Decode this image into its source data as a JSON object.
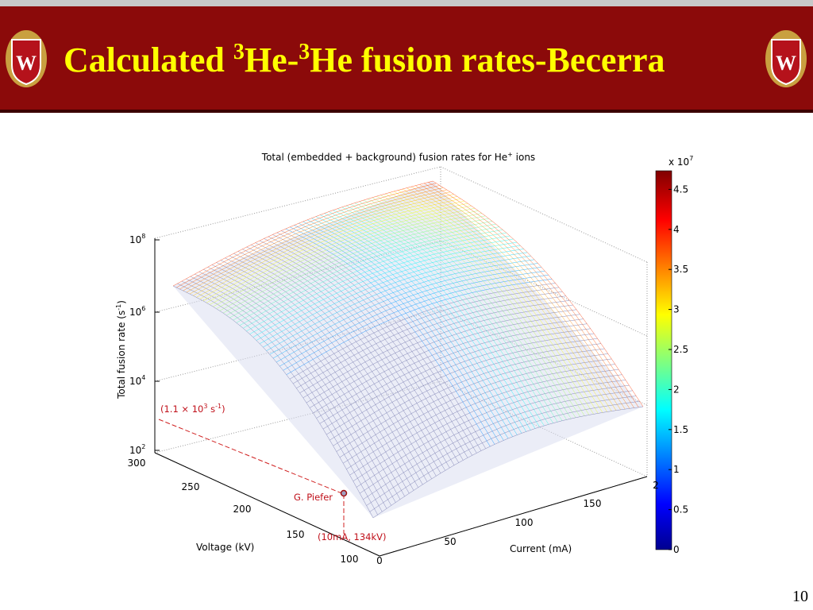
{
  "header": {
    "title": [
      "Calculated ",
      "3",
      "He-",
      "3",
      "He fusion rates-Becerra"
    ]
  },
  "figure": {
    "title": [
      "Total (embedded + background) fusion rates for He",
      "+",
      " ions"
    ],
    "z_label": [
      "Total fusion rate (s",
      "-1",
      ")"
    ],
    "z_ticks": [
      {
        "base": "10",
        "exponent": "2"
      },
      {
        "base": "10",
        "exponent": "4"
      },
      {
        "base": "10",
        "exponent": "6"
      },
      {
        "base": "10",
        "exponent": "8"
      }
    ],
    "voltage_label": "Voltage (kV)",
    "voltage_ticks": [
      "100",
      "150",
      "200",
      "250",
      "300"
    ],
    "current_label": "Current (mA)",
    "current_ticks": [
      "0",
      "50",
      "100",
      "150",
      "2"
    ],
    "colorbar_multiplier": [
      "x 10",
      "7"
    ],
    "colorbar_ticks": [
      "0",
      "0.5",
      "1",
      "1.5",
      "2",
      "2.5",
      "3",
      "3.5",
      "4",
      "4.5"
    ],
    "annotations": {
      "rate": [
        "(1.1 × 10",
        "3",
        " s",
        "-1",
        ")"
      ],
      "name": "G. Piefer",
      "point": "(10mA, 134kV)"
    }
  },
  "slide_number": "10"
}
